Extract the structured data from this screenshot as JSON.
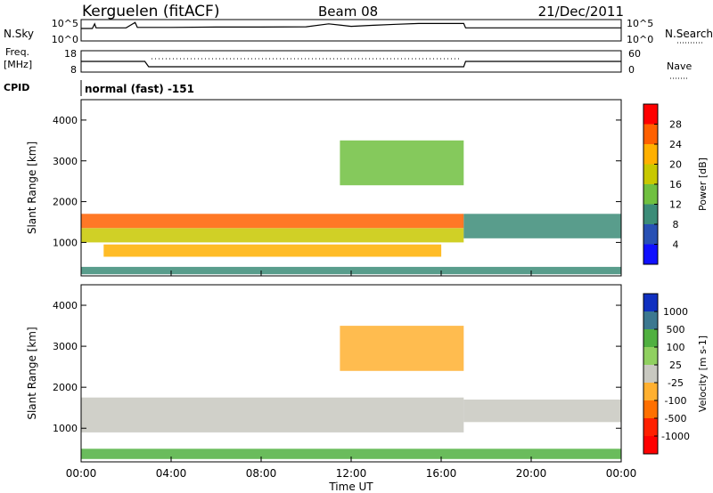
{
  "header": {
    "station": "Kerguelen (fitACF)",
    "beam": "Beam 08",
    "date": "21/Dec/2011"
  },
  "noise_panel": {
    "left_label": "N.Sky",
    "right_label": "N.Search",
    "left_ticks": [
      "10^5",
      "10^0"
    ],
    "right_ticks": [
      "10^5",
      "10^0"
    ]
  },
  "freq_panel": {
    "left_label_1": "Freq.",
    "left_label_2": "[MHz]",
    "left_ticks": [
      "18",
      "8"
    ],
    "right_label": "Nave",
    "right_ticks": [
      "60",
      "0"
    ]
  },
  "cpid": {
    "label": "CPID",
    "value": "normal (fast) -151"
  },
  "chart_data": [
    {
      "type": "line",
      "name": "noise",
      "x": [
        "00:00",
        "00:30",
        "00:36",
        "00:40",
        "01:00",
        "02:00",
        "02:24",
        "02:30",
        "03:00",
        "04:00",
        "06:00",
        "08:00",
        "10:00",
        "11:00",
        "12:00",
        "13:00",
        "14:00",
        "15:00",
        "16:00",
        "17:00",
        "17:05",
        "18:00",
        "20:00",
        "22:00",
        "24:00"
      ],
      "series": [
        {
          "values": [
            1000.0,
            1000.0,
            20000.0,
            1500.0,
            1500.0,
            1500.0,
            50000.0,
            2000.0,
            2000.0,
            2000.0,
            2500.0,
            2500.0,
            3000.0,
            20000.0,
            4000.0,
            8000.0,
            15000.0,
            25000.0,
            25000.0,
            25000.0,
            1500.0,
            1500.0,
            1500.0,
            1500.0,
            1500.0
          ]
        }
      ],
      "ylim": [
        1,
        100000.0
      ],
      "log_scale": true
    },
    {
      "type": "line",
      "name": "frequency",
      "x": [
        "00:00",
        "02:50",
        "03:00",
        "04:00",
        "08:00",
        "12:00",
        "16:00",
        "17:00",
        "17:05",
        "20:00",
        "24:00"
      ],
      "series": [
        {
          "values": [
            13,
            13,
            10,
            10,
            10,
            10,
            10,
            10,
            13,
            13,
            13
          ]
        }
      ],
      "ylim": [
        8,
        18
      ]
    },
    {
      "type": "heatmap",
      "name": "power",
      "xlabel": "Time UT",
      "ylabel": "Slant Range [km]",
      "xlim": [
        0,
        24
      ],
      "ylim": [
        180,
        4500
      ],
      "x_ticks": [
        "00:00",
        "04:00",
        "08:00",
        "12:00",
        "16:00",
        "20:00",
        "00:00"
      ],
      "y_ticks": [
        "1000",
        "2000",
        "3000",
        "4000"
      ],
      "colorbar": {
        "label": "Power [dB]",
        "ticks": [
          "28",
          "24",
          "20",
          "16",
          "12",
          "8",
          "4"
        ],
        "colors": [
          "#ff0000",
          "#ff6000",
          "#ffb000",
          "#c8c800",
          "#70c040",
          "#3c8c78",
          "#2850b4",
          "#1010ff"
        ]
      },
      "bands": [
        {
          "t0": 0.0,
          "t1": 17.0,
          "r0": 1350,
          "r1": 1700,
          "level": 24
        },
        {
          "t0": 0.0,
          "t1": 17.0,
          "r0": 1000,
          "r1": 1350,
          "level": 16
        },
        {
          "t0": 1.0,
          "t1": 16.0,
          "r0": 650,
          "r1": 950,
          "level": 20
        },
        {
          "t0": 0.0,
          "t1": 24.0,
          "r0": 220,
          "r1": 400,
          "level": 8
        },
        {
          "t0": 17.0,
          "t1": 24.0,
          "r0": 1100,
          "r1": 1700,
          "level": 8
        },
        {
          "t0": 11.5,
          "t1": 17.0,
          "r0": 2400,
          "r1": 3500,
          "level": 12
        }
      ]
    },
    {
      "type": "heatmap",
      "name": "velocity",
      "xlabel": "Time UT",
      "ylabel": "Slant Range [km]",
      "xlim": [
        0,
        24
      ],
      "ylim": [
        180,
        4500
      ],
      "x_ticks": [
        "00:00",
        "04:00",
        "08:00",
        "12:00",
        "16:00",
        "20:00",
        "00:00"
      ],
      "y_ticks": [
        "1000",
        "2000",
        "3000",
        "4000"
      ],
      "colorbar": {
        "label": "Velocity [m s-1]",
        "ticks": [
          "1000",
          "500",
          "100",
          "25",
          "-25",
          "-100",
          "-500",
          "-1000"
        ],
        "colors": [
          "#1030c0",
          "#3c7890",
          "#50b040",
          "#90d060",
          "#c8c8c0",
          "#ffb030",
          "#ff7000",
          "#ff2000",
          "#ff0000"
        ]
      },
      "bands": [
        {
          "t0": 0.0,
          "t1": 17.0,
          "r0": 900,
          "r1": 1750,
          "level": 0
        },
        {
          "t0": 17.0,
          "t1": 24.0,
          "r0": 1150,
          "r1": 1700,
          "level": 0
        },
        {
          "t0": 0.0,
          "t1": 24.0,
          "r0": 250,
          "r1": 500,
          "level": 100
        },
        {
          "t0": 11.5,
          "t1": 17.0,
          "r0": 2400,
          "r1": 3500,
          "level": -100
        }
      ]
    }
  ]
}
